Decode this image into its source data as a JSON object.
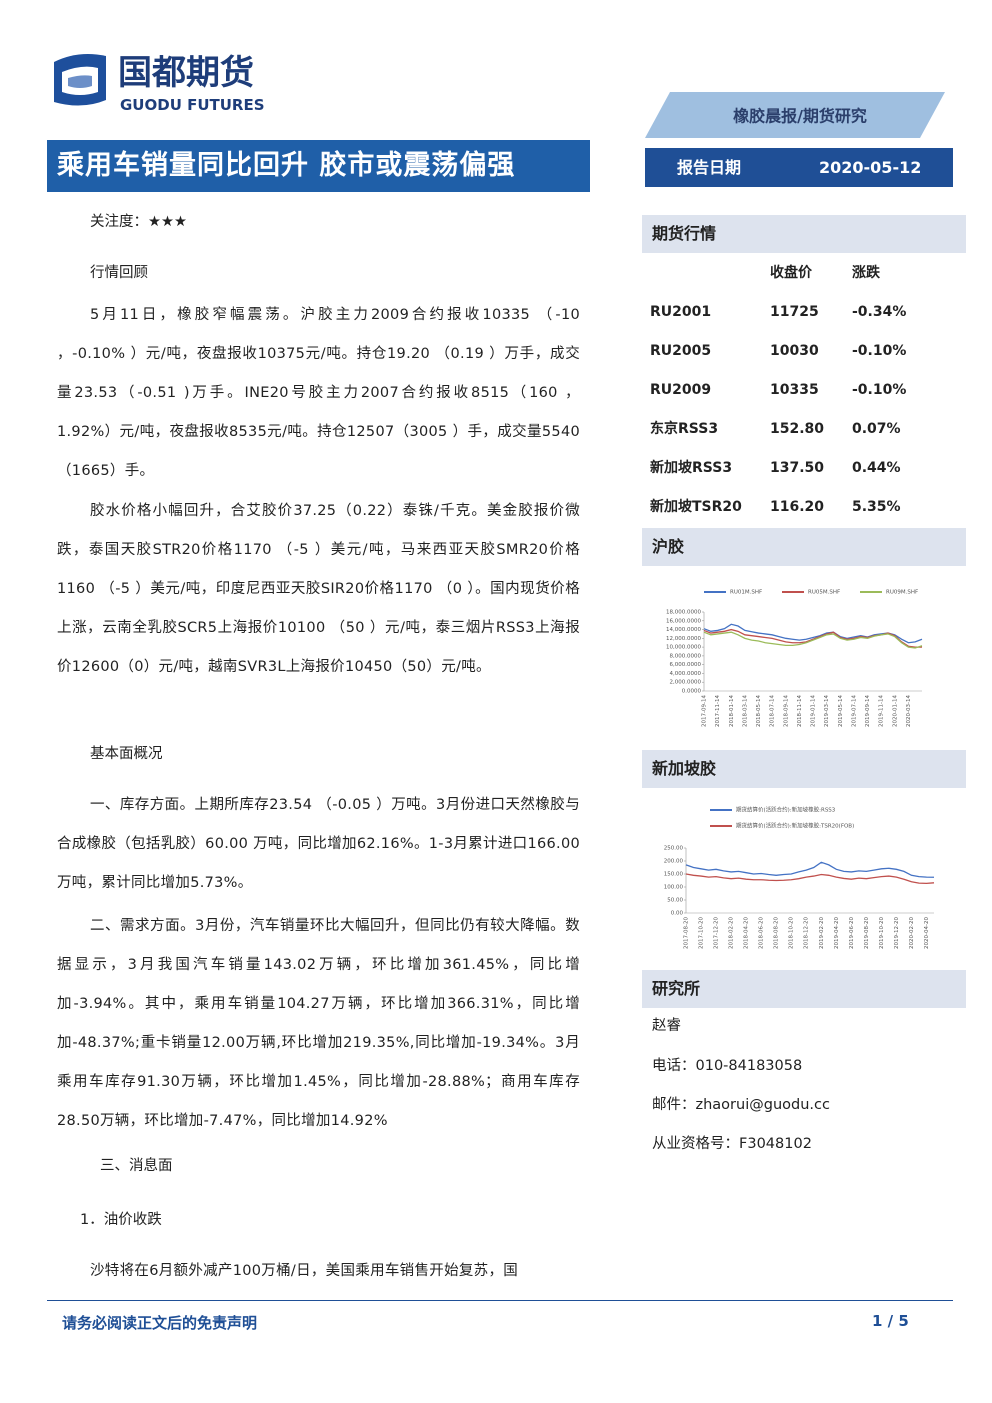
{
  "header": {
    "logo_cn": "国都期货",
    "logo_en": "GUODU FUTURES",
    "category": "橡胶晨报/期货研究",
    "title": "乘用车销量同比回升 胶市或震荡偏强",
    "report_date_label": "报告日期",
    "report_date": "2020-05-12"
  },
  "body": {
    "attention": "关注度：★★★",
    "review_heading": "行情回顾",
    "review_paragraphs": [
      "5月11日，橡胶窄幅震荡。沪胶主力2009合约报收10335 （-10 ，-0.10% ）元/吨，夜盘报收10375元/吨。持仓19.20 （0.19 ）万手，成交量23.53（-0.51 )万手。INE20号胶主力2007合约报收8515（160 ，1.92%）元/吨，夜盘报收8535元/吨。持仓12507（3005 ）手，成交量5540 （1665）手。",
      "胶水价格小幅回升，合艾胶价37.25（0.22）泰铢/千克。美金胶报价微跌，泰国天胶STR20价格1170 （-5 ）美元/吨，马来西亚天胶SMR20价格1160 （-5 ）美元/吨，印度尼西亚天胶SIR20价格1170 （0 ）。国内现货价格上涨，云南全乳胶SCR5上海报价10100 （50 ）元/吨，泰三烟片RSS3上海报价12600（0）元/吨，越南SVR3L上海报价10450（50）元/吨。"
    ],
    "fundamental_heading": "基本面概况",
    "fundamental_paragraphs": [
      "一、库存方面。上期所库存23.54 （-0.05 ）万吨。3月份进口天然橡胶与合成橡胶（包括乳胶）60.00 万吨，同比增加62.16%。1-3月累计进口166.00 万吨，累计同比增加5.73%。",
      "二、需求方面。3月份，汽车销量环比大幅回升，但同比仍有较大降幅。数据显示，3月我国汽车销量143.02万辆，环比增加361.45%，同比增加-3.94%。其中，乘用车销量104.27万辆，环比增加366.31%，同比增加-48.37%;重卡销量12.00万辆,环比增加219.35%,同比增加-19.34%。3月乘用车库存91.30万辆，环比增加1.45%，同比增加-28.88%；商用车库存28.50万辆，环比增加-7.47%，同比增加14.92%"
    ],
    "news_heading": "三、消息面",
    "news_subheading": "1．油价收跌",
    "news_paragraph": "沙特将在6月额外减产100万桶/日，美国乘用车销售开始复苏，国"
  },
  "sidebar": {
    "market_title": "期货行情",
    "market_columns": [
      "收盘价",
      "涨跌"
    ],
    "market_rows": [
      [
        "RU2001",
        "11725",
        "-0.34%"
      ],
      [
        "RU2005",
        "10030",
        "-0.10%"
      ],
      [
        "RU2009",
        "10335",
        "-0.10%"
      ],
      [
        "东京RSS3",
        "152.80",
        "0.07%"
      ],
      [
        "新加坡RSS3",
        "137.50",
        "0.44%"
      ],
      [
        "新加坡TSR20",
        "116.20",
        "5.35%"
      ]
    ],
    "chart1_title": "沪胶",
    "chart2_title": "新加坡胶",
    "institute_title": "研究所",
    "analyst": "赵睿",
    "phone": "电话：010-84183058",
    "email": "邮件：zhaorui@guodu.cc",
    "license": "从业资格号：F3048102"
  },
  "footer": {
    "disclaimer": "请务必阅读正文后的免责声明",
    "page": "1 / 5"
  },
  "chart_data": [
    {
      "type": "line",
      "categories": [
        "2017-09-14",
        null,
        "2017-11-14",
        null,
        "2018-01-14",
        null,
        "2018-03-14",
        null,
        "2018-05-14",
        null,
        "2018-07-14",
        null,
        "2018-09-14",
        null,
        "2018-11-14",
        null,
        "2019-01-14",
        null,
        "2019-03-14",
        null,
        "2019-05-14",
        null,
        "2019-07-14",
        null,
        "2019-09-14",
        null,
        "2019-11-14",
        null,
        "2020-01-14",
        null,
        "2020-03-14",
        null,
        null
      ],
      "series": [
        {
          "name": "RU01M.SHF",
          "color": "#4472c4",
          "values": [
            14200,
            13600,
            13800,
            14200,
            15200,
            14800,
            13800,
            13500,
            13200,
            13000,
            12800,
            12400,
            12000,
            11800,
            11600,
            11800,
            12200,
            12600,
            13200,
            13400,
            12400,
            12000,
            12300,
            12600,
            12300,
            12800,
            13000,
            13200,
            12800,
            11800,
            11000,
            11200,
            11800
          ]
        },
        {
          "name": "RU05M.SHF",
          "color": "#c0504d",
          "values": [
            13800,
            13200,
            13400,
            13600,
            14000,
            13600,
            12800,
            12600,
            12400,
            12200,
            12000,
            11600,
            11200,
            11000,
            11000,
            11200,
            11800,
            12400,
            13000,
            13400,
            12200,
            11800,
            12000,
            12400,
            12200,
            12600,
            12800,
            13200,
            12600,
            11200,
            10200,
            10000,
            10000
          ]
        },
        {
          "name": "RU09M.SHF",
          "color": "#9bbb59",
          "values": [
            13400,
            12800,
            13000,
            13200,
            13400,
            12800,
            12000,
            11600,
            11400,
            11000,
            10800,
            10600,
            10400,
            10400,
            10600,
            11000,
            11600,
            12200,
            12800,
            13000,
            12000,
            11600,
            11800,
            12200,
            12000,
            12500,
            12800,
            13000,
            12400,
            11000,
            10000,
            9800,
            10300
          ]
        }
      ],
      "ylim": [
        0,
        18000
      ],
      "yticks": [
        {
          "value": 0,
          "label": "0.0000"
        },
        {
          "value": 2000,
          "label": "2,000.0000"
        },
        {
          "value": 4000,
          "label": "4,000.0000"
        },
        {
          "value": 6000,
          "label": "6,000.0000"
        },
        {
          "value": 8000,
          "label": "8,000.0000"
        },
        {
          "value": 10000,
          "label": "10,000.0000"
        },
        {
          "value": 12000,
          "label": "12,000.0000"
        },
        {
          "value": 14000,
          "label": "14,000.0000"
        },
        {
          "value": 16000,
          "label": "16,000.0000"
        },
        {
          "value": 18000,
          "label": "18,000.0000"
        }
      ],
      "legend": "top"
    },
    {
      "type": "line",
      "categories": [
        "2017-08-20",
        null,
        "2017-10-20",
        null,
        "2017-12-20",
        null,
        "2018-02-20",
        null,
        "2018-04-20",
        null,
        "2018-06-20",
        null,
        "2018-08-20",
        null,
        "2018-10-20",
        null,
        "2018-12-20",
        null,
        "2019-02-20",
        null,
        "2019-04-20",
        null,
        "2019-06-20",
        null,
        "2019-08-20",
        null,
        "2019-10-20",
        null,
        "2019-12-20",
        null,
        "2020-02-20",
        null,
        "2020-04-20",
        null
      ],
      "series": [
        {
          "name": "期货结算价(活跃合约):新加坡橡胶:RSS3",
          "color": "#4472c4",
          "values": [
            185,
            175,
            170,
            165,
            168,
            162,
            158,
            160,
            155,
            150,
            152,
            148,
            145,
            148,
            150,
            158,
            165,
            175,
            195,
            185,
            168,
            160,
            158,
            162,
            160,
            165,
            170,
            172,
            168,
            160,
            145,
            140,
            138,
            137.5
          ]
        },
        {
          "name": "期货结算价(活跃合约):新加坡橡胶:TSR20(FOB)",
          "color": "#c0504d",
          "values": [
            150,
            145,
            142,
            138,
            140,
            135,
            132,
            134,
            130,
            128,
            128,
            126,
            125,
            126,
            128,
            132,
            138,
            142,
            148,
            145,
            138,
            133,
            130,
            134,
            132,
            136,
            140,
            142,
            138,
            130,
            120,
            115,
            114,
            116.2
          ]
        }
      ],
      "ylim": [
        0,
        250
      ],
      "yticks": [
        {
          "value": 0,
          "label": "0.00"
        },
        {
          "value": 50,
          "label": "50.00"
        },
        {
          "value": 100,
          "label": "100.00"
        },
        {
          "value": 150,
          "label": "150.00"
        },
        {
          "value": 200,
          "label": "200.00"
        },
        {
          "value": 250,
          "label": "250.00"
        }
      ],
      "legend": "top-left"
    }
  ]
}
